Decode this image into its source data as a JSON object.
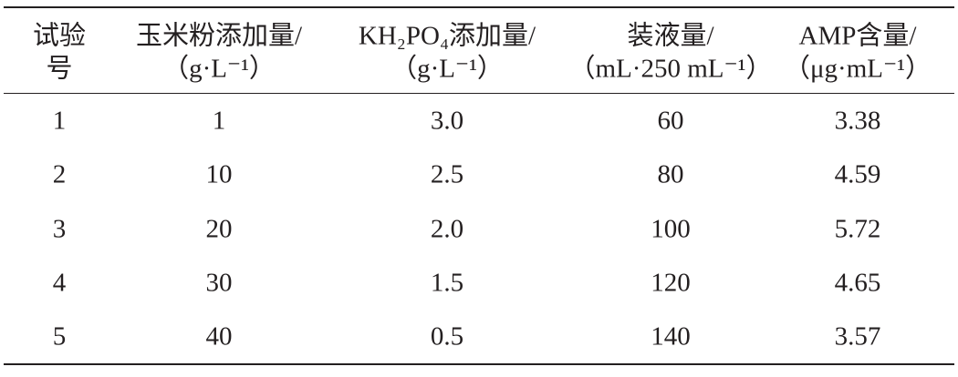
{
  "table": {
    "columns": [
      [
        "试验",
        "号"
      ],
      [
        "玉米粉添加量/",
        "（g·L⁻¹）"
      ],
      [
        "KH₂PO₄添加量/",
        "（g·L⁻¹）"
      ],
      [
        "装液量/",
        "（mL·250 mL⁻¹）"
      ],
      [
        "AMP含量/",
        "（μg·mL⁻¹）"
      ]
    ],
    "rows": [
      [
        "1",
        "1",
        "3.0",
        "60",
        "3.38"
      ],
      [
        "2",
        "10",
        "2.5",
        "80",
        "4.59"
      ],
      [
        "3",
        "20",
        "2.0",
        "100",
        "5.72"
      ],
      [
        "4",
        "30",
        "1.5",
        "120",
        "4.65"
      ],
      [
        "5",
        "40",
        "0.5",
        "140",
        "3.57"
      ]
    ]
  }
}
